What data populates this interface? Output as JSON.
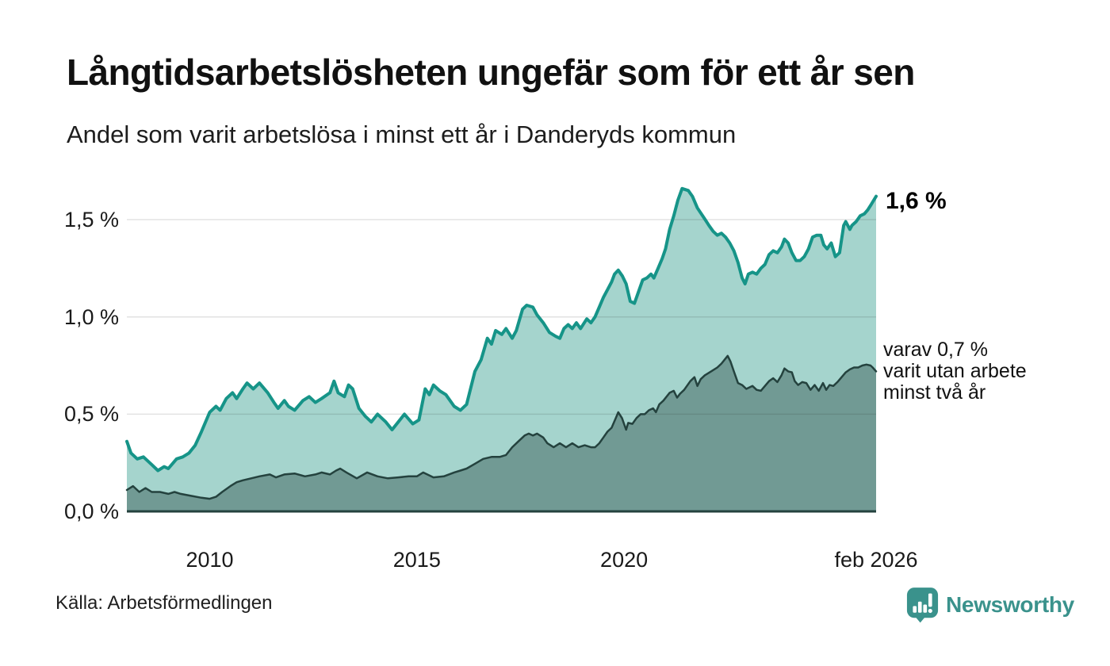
{
  "header": {
    "title": "Långtidsarbetslösheten ungefär som för ett år sen",
    "subtitle": "Andel som varit arbetslösa i minst ett år i Danderyds kommun"
  },
  "annotations": {
    "latest_value": "1,6 %",
    "secondary": [
      "varav 0,7 %",
      "varit utan arbete",
      "minst två år"
    ]
  },
  "footer": {
    "source": "Källa: Arbetsförmedlingen",
    "brand": "Newsworthy",
    "brand_icon": "bar-chart-speech-bubble-icon",
    "brand_color": "#3a928c"
  },
  "chart_data": {
    "type": "area",
    "title": "Långtidsarbetslösheten ungefär som för ett år sen",
    "subtitle": "Andel som varit arbetslösa i minst ett år i Danderyds kommun",
    "unit": "%",
    "grid": true,
    "x_axis": {
      "range": [
        2008.0,
        2026.083
      ],
      "ticks": [
        {
          "x": 2010,
          "label": "2010"
        },
        {
          "x": 2015,
          "label": "2015"
        },
        {
          "x": 2020,
          "label": "2020"
        },
        {
          "x": 2026.083,
          "label": "feb 2026"
        }
      ]
    },
    "y_axis": {
      "range": [
        0,
        1.7
      ],
      "gridlines": [
        0.5,
        1.0,
        1.5
      ],
      "ticks": [
        {
          "v": 0,
          "label": "0,0 %"
        },
        {
          "v": 0.5,
          "label": "0,5 %"
        },
        {
          "v": 1.0,
          "label": "1,0 %"
        },
        {
          "v": 1.5,
          "label": "1,5 %"
        }
      ],
      "gridline_color": "rgba(30,30,30,0.13)"
    },
    "series": [
      {
        "name": "Arbetslösa minst ett år",
        "end_label": "1,6 %",
        "line_color": "#169488",
        "fill_color": "#a5d4cd",
        "line_width": 4,
        "points": [
          [
            2008.0,
            0.36
          ],
          [
            2008.1,
            0.3
          ],
          [
            2008.25,
            0.27
          ],
          [
            2008.4,
            0.28
          ],
          [
            2008.6,
            0.24
          ],
          [
            2008.75,
            0.21
          ],
          [
            2008.9,
            0.23
          ],
          [
            2009.0,
            0.22
          ],
          [
            2009.2,
            0.27
          ],
          [
            2009.35,
            0.28
          ],
          [
            2009.5,
            0.3
          ],
          [
            2009.65,
            0.34
          ],
          [
            2009.8,
            0.41
          ],
          [
            2010.0,
            0.51
          ],
          [
            2010.15,
            0.54
          ],
          [
            2010.25,
            0.52
          ],
          [
            2010.4,
            0.58
          ],
          [
            2010.55,
            0.61
          ],
          [
            2010.65,
            0.58
          ],
          [
            2010.8,
            0.63
          ],
          [
            2010.9,
            0.66
          ],
          [
            2011.05,
            0.63
          ],
          [
            2011.2,
            0.66
          ],
          [
            2011.4,
            0.61
          ],
          [
            2011.55,
            0.56
          ],
          [
            2011.65,
            0.53
          ],
          [
            2011.8,
            0.57
          ],
          [
            2011.9,
            0.54
          ],
          [
            2012.05,
            0.52
          ],
          [
            2012.25,
            0.57
          ],
          [
            2012.4,
            0.59
          ],
          [
            2012.55,
            0.56
          ],
          [
            2012.7,
            0.58
          ],
          [
            2012.9,
            0.61
          ],
          [
            2013.0,
            0.67
          ],
          [
            2013.1,
            0.61
          ],
          [
            2013.25,
            0.59
          ],
          [
            2013.35,
            0.65
          ],
          [
            2013.45,
            0.63
          ],
          [
            2013.6,
            0.53
          ],
          [
            2013.75,
            0.49
          ],
          [
            2013.9,
            0.46
          ],
          [
            2014.05,
            0.5
          ],
          [
            2014.25,
            0.46
          ],
          [
            2014.4,
            0.42
          ],
          [
            2014.55,
            0.46
          ],
          [
            2014.7,
            0.5
          ],
          [
            2014.9,
            0.45
          ],
          [
            2015.05,
            0.47
          ],
          [
            2015.2,
            0.63
          ],
          [
            2015.3,
            0.6
          ],
          [
            2015.4,
            0.65
          ],
          [
            2015.55,
            0.62
          ],
          [
            2015.7,
            0.6
          ],
          [
            2015.9,
            0.54
          ],
          [
            2016.05,
            0.52
          ],
          [
            2016.2,
            0.55
          ],
          [
            2016.4,
            0.72
          ],
          [
            2016.55,
            0.78
          ],
          [
            2016.7,
            0.89
          ],
          [
            2016.8,
            0.86
          ],
          [
            2016.9,
            0.93
          ],
          [
            2017.05,
            0.91
          ],
          [
            2017.15,
            0.94
          ],
          [
            2017.3,
            0.89
          ],
          [
            2017.4,
            0.93
          ],
          [
            2017.55,
            1.04
          ],
          [
            2017.65,
            1.06
          ],
          [
            2017.8,
            1.05
          ],
          [
            2017.9,
            1.01
          ],
          [
            2018.05,
            0.97
          ],
          [
            2018.2,
            0.92
          ],
          [
            2018.35,
            0.9
          ],
          [
            2018.45,
            0.89
          ],
          [
            2018.55,
            0.94
          ],
          [
            2018.65,
            0.96
          ],
          [
            2018.75,
            0.94
          ],
          [
            2018.85,
            0.97
          ],
          [
            2018.95,
            0.94
          ],
          [
            2019.1,
            0.99
          ],
          [
            2019.2,
            0.97
          ],
          [
            2019.3,
            1.0
          ],
          [
            2019.4,
            1.05
          ],
          [
            2019.5,
            1.1
          ],
          [
            2019.6,
            1.14
          ],
          [
            2019.7,
            1.18
          ],
          [
            2019.77,
            1.22
          ],
          [
            2019.86,
            1.24
          ],
          [
            2019.96,
            1.21
          ],
          [
            2020.05,
            1.17
          ],
          [
            2020.15,
            1.08
          ],
          [
            2020.25,
            1.07
          ],
          [
            2020.35,
            1.13
          ],
          [
            2020.45,
            1.19
          ],
          [
            2020.55,
            1.2
          ],
          [
            2020.65,
            1.22
          ],
          [
            2020.72,
            1.2
          ],
          [
            2020.82,
            1.25
          ],
          [
            2020.92,
            1.3
          ],
          [
            2021.0,
            1.35
          ],
          [
            2021.1,
            1.45
          ],
          [
            2021.2,
            1.52
          ],
          [
            2021.3,
            1.6
          ],
          [
            2021.4,
            1.66
          ],
          [
            2021.55,
            1.65
          ],
          [
            2021.65,
            1.62
          ],
          [
            2021.77,
            1.56
          ],
          [
            2021.96,
            1.5
          ],
          [
            2022.05,
            1.47
          ],
          [
            2022.15,
            1.44
          ],
          [
            2022.25,
            1.42
          ],
          [
            2022.35,
            1.43
          ],
          [
            2022.45,
            1.41
          ],
          [
            2022.55,
            1.38
          ],
          [
            2022.65,
            1.34
          ],
          [
            2022.75,
            1.28
          ],
          [
            2022.85,
            1.2
          ],
          [
            2022.92,
            1.17
          ],
          [
            2023.0,
            1.22
          ],
          [
            2023.1,
            1.23
          ],
          [
            2023.2,
            1.22
          ],
          [
            2023.3,
            1.25
          ],
          [
            2023.4,
            1.27
          ],
          [
            2023.5,
            1.32
          ],
          [
            2023.6,
            1.34
          ],
          [
            2023.7,
            1.33
          ],
          [
            2023.8,
            1.36
          ],
          [
            2023.87,
            1.4
          ],
          [
            2023.96,
            1.38
          ],
          [
            2024.05,
            1.33
          ],
          [
            2024.15,
            1.29
          ],
          [
            2024.25,
            1.29
          ],
          [
            2024.35,
            1.31
          ],
          [
            2024.45,
            1.35
          ],
          [
            2024.55,
            1.41
          ],
          [
            2024.65,
            1.42
          ],
          [
            2024.75,
            1.42
          ],
          [
            2024.82,
            1.37
          ],
          [
            2024.9,
            1.35
          ],
          [
            2025.0,
            1.38
          ],
          [
            2025.1,
            1.31
          ],
          [
            2025.2,
            1.33
          ],
          [
            2025.3,
            1.47
          ],
          [
            2025.35,
            1.49
          ],
          [
            2025.45,
            1.45
          ],
          [
            2025.5,
            1.47
          ],
          [
            2025.6,
            1.49
          ],
          [
            2025.7,
            1.52
          ],
          [
            2025.8,
            1.53
          ],
          [
            2025.88,
            1.55
          ],
          [
            2025.97,
            1.58
          ],
          [
            2026.083,
            1.62
          ]
        ]
      },
      {
        "name": "Varav utan arbete minst två år",
        "end_label": "0,7 %",
        "line_color": "#24423e",
        "fill_color": "#719a94",
        "line_width": 2.5,
        "points": [
          [
            2008.0,
            0.11
          ],
          [
            2008.15,
            0.13
          ],
          [
            2008.3,
            0.1
          ],
          [
            2008.45,
            0.12
          ],
          [
            2008.6,
            0.1
          ],
          [
            2008.8,
            0.1
          ],
          [
            2009.0,
            0.09
          ],
          [
            2009.15,
            0.1
          ],
          [
            2009.3,
            0.09
          ],
          [
            2009.55,
            0.08
          ],
          [
            2009.8,
            0.07
          ],
          [
            2010.0,
            0.065
          ],
          [
            2010.15,
            0.075
          ],
          [
            2010.3,
            0.1
          ],
          [
            2010.5,
            0.13
          ],
          [
            2010.65,
            0.15
          ],
          [
            2010.8,
            0.16
          ],
          [
            2011.0,
            0.17
          ],
          [
            2011.2,
            0.18
          ],
          [
            2011.45,
            0.19
          ],
          [
            2011.6,
            0.175
          ],
          [
            2011.8,
            0.19
          ],
          [
            2012.05,
            0.195
          ],
          [
            2012.3,
            0.18
          ],
          [
            2012.55,
            0.19
          ],
          [
            2012.7,
            0.2
          ],
          [
            2012.9,
            0.19
          ],
          [
            2013.05,
            0.21
          ],
          [
            2013.15,
            0.22
          ],
          [
            2013.3,
            0.2
          ],
          [
            2013.55,
            0.17
          ],
          [
            2013.8,
            0.2
          ],
          [
            2014.05,
            0.18
          ],
          [
            2014.3,
            0.17
          ],
          [
            2014.55,
            0.175
          ],
          [
            2014.8,
            0.18
          ],
          [
            2015.0,
            0.18
          ],
          [
            2015.15,
            0.2
          ],
          [
            2015.4,
            0.175
          ],
          [
            2015.65,
            0.18
          ],
          [
            2015.9,
            0.2
          ],
          [
            2016.05,
            0.21
          ],
          [
            2016.2,
            0.22
          ],
          [
            2016.4,
            0.245
          ],
          [
            2016.6,
            0.27
          ],
          [
            2016.8,
            0.28
          ],
          [
            2017.0,
            0.28
          ],
          [
            2017.15,
            0.29
          ],
          [
            2017.3,
            0.33
          ],
          [
            2017.45,
            0.36
          ],
          [
            2017.6,
            0.39
          ],
          [
            2017.7,
            0.4
          ],
          [
            2017.8,
            0.39
          ],
          [
            2017.9,
            0.4
          ],
          [
            2018.05,
            0.38
          ],
          [
            2018.15,
            0.35
          ],
          [
            2018.3,
            0.33
          ],
          [
            2018.45,
            0.35
          ],
          [
            2018.6,
            0.33
          ],
          [
            2018.75,
            0.35
          ],
          [
            2018.9,
            0.33
          ],
          [
            2019.05,
            0.34
          ],
          [
            2019.2,
            0.33
          ],
          [
            2019.3,
            0.33
          ],
          [
            2019.4,
            0.35
          ],
          [
            2019.5,
            0.38
          ],
          [
            2019.6,
            0.41
          ],
          [
            2019.7,
            0.43
          ],
          [
            2019.8,
            0.48
          ],
          [
            2019.86,
            0.51
          ],
          [
            2019.95,
            0.48
          ],
          [
            2020.05,
            0.42
          ],
          [
            2020.1,
            0.455
          ],
          [
            2020.2,
            0.45
          ],
          [
            2020.3,
            0.48
          ],
          [
            2020.4,
            0.5
          ],
          [
            2020.5,
            0.5
          ],
          [
            2020.6,
            0.52
          ],
          [
            2020.7,
            0.53
          ],
          [
            2020.77,
            0.51
          ],
          [
            2020.85,
            0.55
          ],
          [
            2020.95,
            0.57
          ],
          [
            2021.1,
            0.61
          ],
          [
            2021.2,
            0.62
          ],
          [
            2021.28,
            0.585
          ],
          [
            2021.35,
            0.605
          ],
          [
            2021.45,
            0.625
          ],
          [
            2021.6,
            0.67
          ],
          [
            2021.7,
            0.69
          ],
          [
            2021.77,
            0.645
          ],
          [
            2021.85,
            0.68
          ],
          [
            2021.95,
            0.7
          ],
          [
            2022.1,
            0.72
          ],
          [
            2022.25,
            0.74
          ],
          [
            2022.35,
            0.76
          ],
          [
            2022.5,
            0.8
          ],
          [
            2022.57,
            0.77
          ],
          [
            2022.65,
            0.72
          ],
          [
            2022.75,
            0.66
          ],
          [
            2022.85,
            0.65
          ],
          [
            2022.95,
            0.63
          ],
          [
            2023.1,
            0.645
          ],
          [
            2023.2,
            0.625
          ],
          [
            2023.3,
            0.62
          ],
          [
            2023.4,
            0.645
          ],
          [
            2023.5,
            0.67
          ],
          [
            2023.6,
            0.685
          ],
          [
            2023.7,
            0.665
          ],
          [
            2023.8,
            0.7
          ],
          [
            2023.87,
            0.735
          ],
          [
            2023.96,
            0.72
          ],
          [
            2024.05,
            0.715
          ],
          [
            2024.12,
            0.67
          ],
          [
            2024.2,
            0.65
          ],
          [
            2024.3,
            0.665
          ],
          [
            2024.4,
            0.66
          ],
          [
            2024.5,
            0.625
          ],
          [
            2024.6,
            0.65
          ],
          [
            2024.7,
            0.62
          ],
          [
            2024.8,
            0.66
          ],
          [
            2024.88,
            0.625
          ],
          [
            2024.96,
            0.65
          ],
          [
            2025.05,
            0.645
          ],
          [
            2025.15,
            0.665
          ],
          [
            2025.25,
            0.69
          ],
          [
            2025.35,
            0.715
          ],
          [
            2025.45,
            0.73
          ],
          [
            2025.55,
            0.74
          ],
          [
            2025.65,
            0.74
          ],
          [
            2025.75,
            0.75
          ],
          [
            2025.85,
            0.755
          ],
          [
            2025.95,
            0.75
          ],
          [
            2026.0,
            0.74
          ],
          [
            2026.083,
            0.72
          ]
        ]
      }
    ]
  }
}
